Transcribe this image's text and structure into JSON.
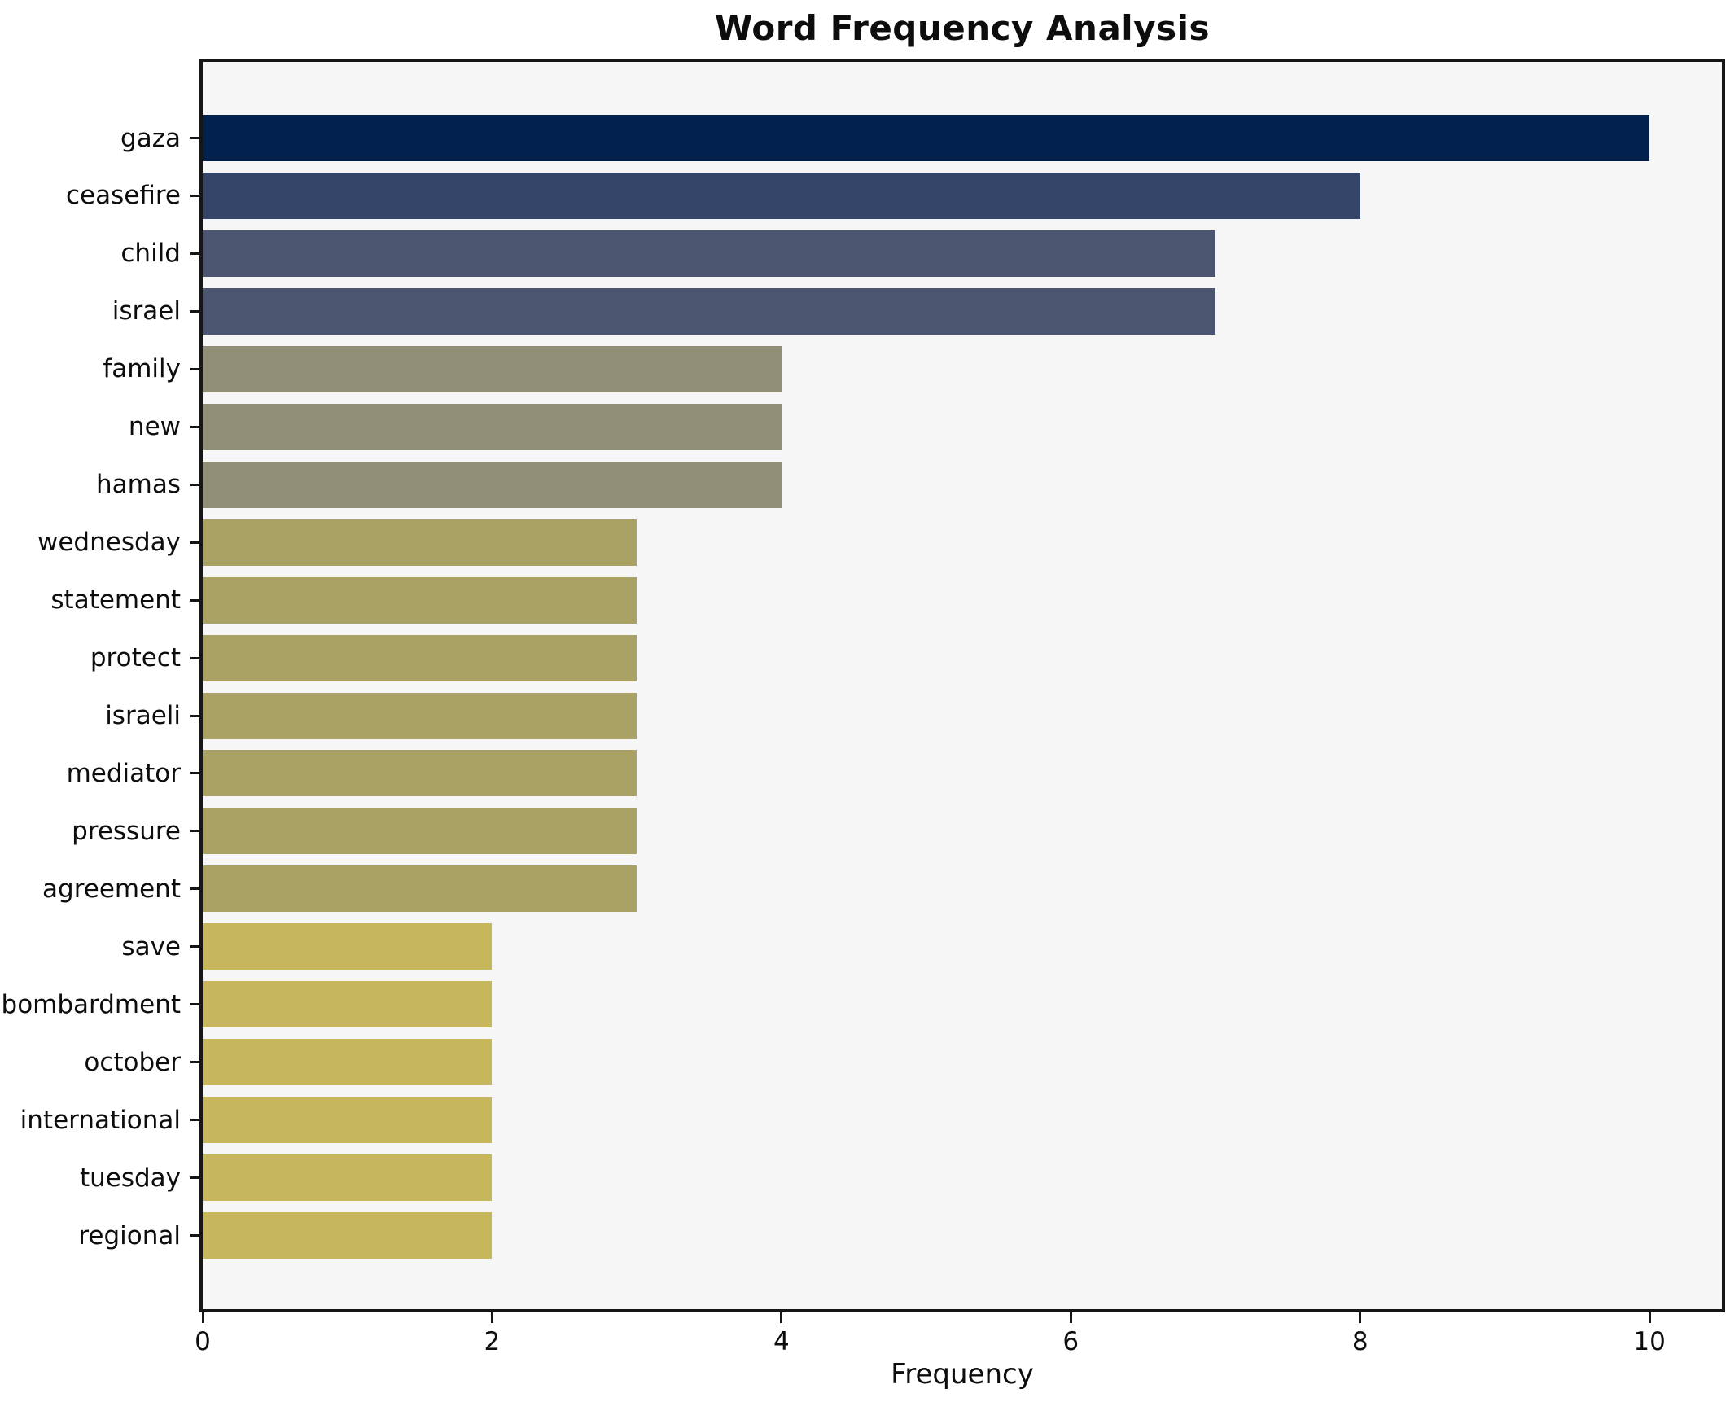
{
  "chart_data": {
    "type": "bar",
    "orientation": "horizontal",
    "title": "Word Frequency Analysis",
    "xlabel": "Frequency",
    "ylabel": "",
    "categories": [
      "gaza",
      "ceasefire",
      "child",
      "israel",
      "family",
      "new",
      "hamas",
      "wednesday",
      "statement",
      "protect",
      "israeli",
      "mediator",
      "pressure",
      "agreement",
      "save",
      "bombardment",
      "october",
      "international",
      "tuesday",
      "regional"
    ],
    "values": [
      10,
      8,
      7,
      7,
      4,
      4,
      4,
      3,
      3,
      3,
      3,
      3,
      3,
      3,
      2,
      2,
      2,
      2,
      2,
      2
    ],
    "bar_colors": [
      "#02224d",
      "#344569",
      "#4d5670",
      "#4d5670",
      "#918e76",
      "#918e76",
      "#918e76",
      "#aaa265",
      "#aaa265",
      "#aaa265",
      "#aaa265",
      "#aaa265",
      "#aaa265",
      "#aaa265",
      "#c7b75c",
      "#c7b75c",
      "#c7b75c",
      "#c7b75c",
      "#c7b75c",
      "#c7b75c"
    ],
    "xticks": [
      0,
      2,
      4,
      6,
      8,
      10
    ],
    "xlim": [
      0,
      10.5
    ],
    "grid": false,
    "legend": "none",
    "plot_background": "#f6f6f7",
    "figure_background": "#ffffff",
    "spine_color": "#161616",
    "text_color": "#0d0d0d"
  }
}
